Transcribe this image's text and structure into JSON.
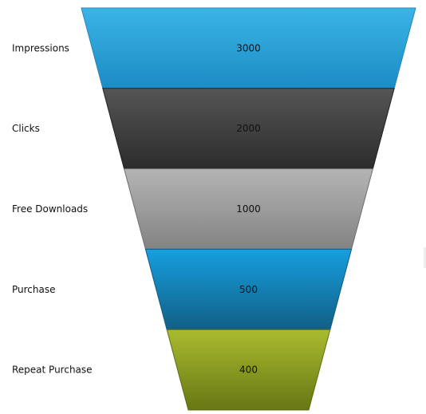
{
  "chart_data": {
    "type": "funnel",
    "title": "",
    "categories": [
      "Impressions",
      "Clicks",
      "Free Downloads",
      "Purchase",
      "Repeat Purchase"
    ],
    "values": [
      3000,
      2000,
      1000,
      500,
      400
    ],
    "value_labels": [
      "3000",
      "2000",
      "1000",
      "500",
      "400"
    ],
    "segment_colors": [
      {
        "top": "#3bb4e6",
        "bottom": "#1b8cc4",
        "edge": "#2a86b8"
      },
      {
        "top": "#555555",
        "bottom": "#2c2c2c",
        "edge": "#222222"
      },
      {
        "top": "#b4b4b4",
        "bottom": "#838383",
        "edge": "#6f6f6f"
      },
      {
        "top": "#169fdf",
        "bottom": "#125f86",
        "edge": "#0f5a80"
      },
      {
        "top": "#a9bc2f",
        "bottom": "#687614",
        "edge": "#5f6c12"
      }
    ],
    "legend": "none",
    "grid": false
  }
}
